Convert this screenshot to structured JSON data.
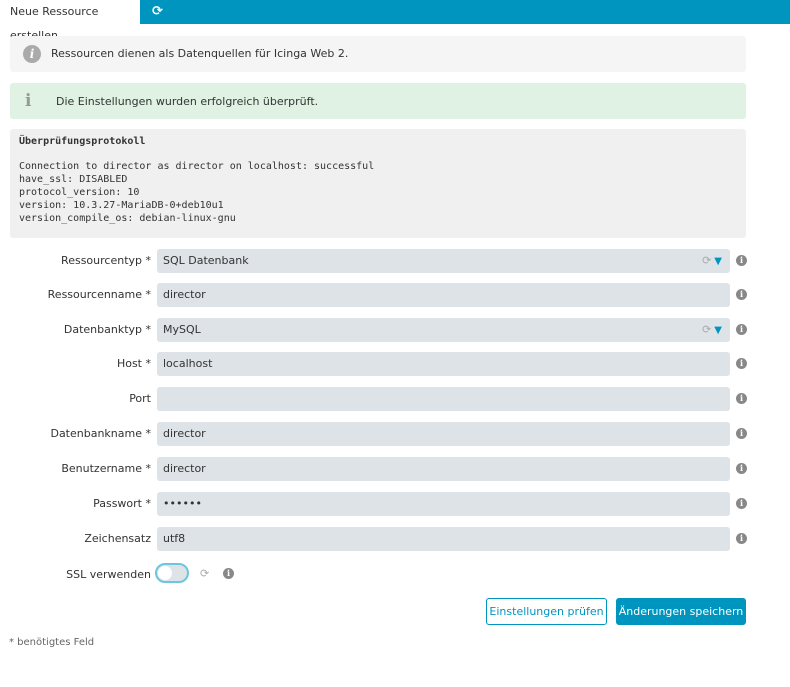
{
  "tabs": {
    "active": "Neue Ressource erstellen",
    "refresh_icon": "refresh-icon"
  },
  "info_message": "Ressourcen dienen als Datenquellen für Icinga Web 2.",
  "success_message": "Die Einstellungen wurden erfolgreich überprüft.",
  "log": {
    "title": "Überprüfungsprotokoll",
    "lines": [
      "Connection to director as director on localhost: successful",
      "have_ssl: DISABLED",
      "protocol_version: 10",
      "version: 10.3.27-MariaDB-0+deb10u1",
      "version_compile_os: debian-linux-gnu"
    ]
  },
  "form": {
    "fields": [
      {
        "label": "Ressourcentyp *",
        "value": "SQL Datenbank",
        "type": "select"
      },
      {
        "label": "Ressourcenname *",
        "value": "director"
      },
      {
        "label": "Datenbanktyp *",
        "value": "MySQL",
        "type": "select"
      },
      {
        "label": "Host *",
        "value": "localhost"
      },
      {
        "label": "Port",
        "value": ""
      },
      {
        "label": "Datenbankname *",
        "value": "director"
      },
      {
        "label": "Benutzername *",
        "value": "director"
      },
      {
        "label": "Passwort *",
        "value": "••••••"
      },
      {
        "label": "Zeichensatz",
        "value": "utf8"
      }
    ],
    "ssl": {
      "label": "SSL verwenden",
      "enabled": false
    },
    "check_button": "Einstellungen prüfen",
    "save_button": "Änderungen speichern",
    "required_note": "* benötigtes Feld"
  },
  "colors": {
    "accent": "#0095bf",
    "success_bg": "#dff2e4",
    "input_bg": "#dde3e6"
  }
}
